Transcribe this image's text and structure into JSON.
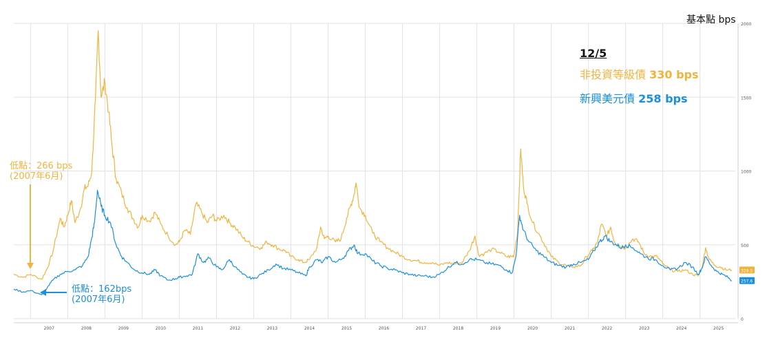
{
  "unit_label": "基本點 bps",
  "legend": {
    "date": "12/5",
    "high_yield": {
      "name": "非投資等級債",
      "value": "330 bps",
      "color": "#f2b33d"
    },
    "em_usd": {
      "name": "新興美元債",
      "value": "258 bps",
      "color": "#1a8fe0"
    }
  },
  "annotations": {
    "hy_low": {
      "line1": "低點：266 bps",
      "line2": "(2007年6月)"
    },
    "em_low": {
      "line1": "低點：162bps",
      "line2": "(2007年6月)"
    }
  },
  "end_labels": {
    "high_yield": "329.5",
    "em_usd": "257.6"
  },
  "chart_data": {
    "type": "line",
    "x_ticks": [
      "2007",
      "2008",
      "2009",
      "2010",
      "2011",
      "2012",
      "2013",
      "2014",
      "2015",
      "2016",
      "2017",
      "2018",
      "2019",
      "2020",
      "2021",
      "2022",
      "2023",
      "2024",
      "2025"
    ],
    "y_ticks": [
      0,
      500,
      1000,
      1500,
      2000
    ],
    "ylim": [
      0,
      2000
    ],
    "xlim": [
      2006.55,
      2025.95
    ],
    "grid": true,
    "series": [
      {
        "name": "非投資等級債",
        "color": "#f2b33d",
        "points": [
          [
            2006.55,
            300
          ],
          [
            2006.8,
            280
          ],
          [
            2007.0,
            300
          ],
          [
            2007.3,
            266
          ],
          [
            2007.45,
            340
          ],
          [
            2007.6,
            450
          ],
          [
            2007.8,
            680
          ],
          [
            2007.9,
            620
          ],
          [
            2008.0,
            700
          ],
          [
            2008.1,
            800
          ],
          [
            2008.2,
            650
          ],
          [
            2008.35,
            750
          ],
          [
            2008.45,
            880
          ],
          [
            2008.55,
            900
          ],
          [
            2008.65,
            1000
          ],
          [
            2008.75,
            1500
          ],
          [
            2008.82,
            1950
          ],
          [
            2008.9,
            1500
          ],
          [
            2009.0,
            1600
          ],
          [
            2009.1,
            1400
          ],
          [
            2009.2,
            1150
          ],
          [
            2009.3,
            950
          ],
          [
            2009.45,
            850
          ],
          [
            2009.6,
            750
          ],
          [
            2009.75,
            680
          ],
          [
            2009.9,
            620
          ],
          [
            2010.0,
            700
          ],
          [
            2010.2,
            660
          ],
          [
            2010.35,
            720
          ],
          [
            2010.5,
            640
          ],
          [
            2010.7,
            560
          ],
          [
            2010.9,
            500
          ],
          [
            2011.0,
            520
          ],
          [
            2011.15,
            600
          ],
          [
            2011.3,
            570
          ],
          [
            2011.45,
            780
          ],
          [
            2011.6,
            720
          ],
          [
            2011.75,
            650
          ],
          [
            2011.9,
            700
          ],
          [
            2012.0,
            660
          ],
          [
            2012.2,
            700
          ],
          [
            2012.35,
            650
          ],
          [
            2012.5,
            620
          ],
          [
            2012.7,
            550
          ],
          [
            2012.85,
            520
          ],
          [
            2013.0,
            490
          ],
          [
            2013.2,
            480
          ],
          [
            2013.35,
            520
          ],
          [
            2013.5,
            500
          ],
          [
            2013.7,
            470
          ],
          [
            2013.85,
            460
          ],
          [
            2014.0,
            420
          ],
          [
            2014.2,
            400
          ],
          [
            2014.35,
            380
          ],
          [
            2014.5,
            400
          ],
          [
            2014.7,
            480
          ],
          [
            2014.8,
            620
          ],
          [
            2014.9,
            540
          ],
          [
            2015.0,
            560
          ],
          [
            2015.2,
            520
          ],
          [
            2015.35,
            540
          ],
          [
            2015.5,
            680
          ],
          [
            2015.6,
            760
          ],
          [
            2015.7,
            840
          ],
          [
            2015.75,
            920
          ],
          [
            2015.85,
            750
          ],
          [
            2016.0,
            700
          ],
          [
            2016.2,
            580
          ],
          [
            2016.4,
            520
          ],
          [
            2016.6,
            480
          ],
          [
            2016.8,
            450
          ],
          [
            2017.0,
            420
          ],
          [
            2017.2,
            400
          ],
          [
            2017.4,
            390
          ],
          [
            2017.6,
            380
          ],
          [
            2017.8,
            380
          ],
          [
            2018.0,
            360
          ],
          [
            2018.2,
            380
          ],
          [
            2018.4,
            370
          ],
          [
            2018.6,
            380
          ],
          [
            2018.8,
            460
          ],
          [
            2018.95,
            560
          ],
          [
            2019.05,
            430
          ],
          [
            2019.2,
            440
          ],
          [
            2019.4,
            470
          ],
          [
            2019.6,
            450
          ],
          [
            2019.8,
            420
          ],
          [
            2019.95,
            420
          ],
          [
            2020.0,
            430
          ],
          [
            2020.1,
            600
          ],
          [
            2020.18,
            1150
          ],
          [
            2020.25,
            900
          ],
          [
            2020.35,
            780
          ],
          [
            2020.5,
            650
          ],
          [
            2020.7,
            560
          ],
          [
            2020.85,
            490
          ],
          [
            2021.0,
            420
          ],
          [
            2021.2,
            380
          ],
          [
            2021.4,
            360
          ],
          [
            2021.6,
            350
          ],
          [
            2021.8,
            360
          ],
          [
            2021.95,
            420
          ],
          [
            2022.1,
            460
          ],
          [
            2022.25,
            520
          ],
          [
            2022.35,
            640
          ],
          [
            2022.5,
            560
          ],
          [
            2022.6,
            620
          ],
          [
            2022.7,
            520
          ],
          [
            2022.85,
            490
          ],
          [
            2023.0,
            480
          ],
          [
            2023.2,
            540
          ],
          [
            2023.35,
            520
          ],
          [
            2023.5,
            440
          ],
          [
            2023.7,
            420
          ],
          [
            2023.85,
            420
          ],
          [
            2024.0,
            370
          ],
          [
            2024.2,
            330
          ],
          [
            2024.4,
            320
          ],
          [
            2024.6,
            330
          ],
          [
            2024.8,
            300
          ],
          [
            2024.95,
            290
          ],
          [
            2025.05,
            340
          ],
          [
            2025.15,
            480
          ],
          [
            2025.25,
            400
          ],
          [
            2025.4,
            360
          ],
          [
            2025.55,
            350
          ],
          [
            2025.7,
            330
          ],
          [
            2025.85,
            329.5
          ]
        ]
      },
      {
        "name": "新興美元債",
        "color": "#1a8fe0",
        "points": [
          [
            2006.55,
            200
          ],
          [
            2006.8,
            180
          ],
          [
            2007.0,
            190
          ],
          [
            2007.3,
            162
          ],
          [
            2007.45,
            210
          ],
          [
            2007.6,
            260
          ],
          [
            2007.8,
            300
          ],
          [
            2008.0,
            320
          ],
          [
            2008.2,
            330
          ],
          [
            2008.4,
            360
          ],
          [
            2008.55,
            420
          ],
          [
            2008.65,
            550
          ],
          [
            2008.72,
            650
          ],
          [
            2008.8,
            870
          ],
          [
            2008.9,
            760
          ],
          [
            2009.0,
            700
          ],
          [
            2009.15,
            650
          ],
          [
            2009.3,
            500
          ],
          [
            2009.45,
            420
          ],
          [
            2009.6,
            380
          ],
          [
            2009.8,
            330
          ],
          [
            2010.0,
            310
          ],
          [
            2010.2,
            300
          ],
          [
            2010.35,
            330
          ],
          [
            2010.5,
            290
          ],
          [
            2010.7,
            260
          ],
          [
            2010.9,
            270
          ],
          [
            2011.0,
            280
          ],
          [
            2011.2,
            290
          ],
          [
            2011.35,
            300
          ],
          [
            2011.5,
            440
          ],
          [
            2011.65,
            380
          ],
          [
            2011.8,
            410
          ],
          [
            2012.0,
            350
          ],
          [
            2012.15,
            330
          ],
          [
            2012.35,
            400
          ],
          [
            2012.5,
            350
          ],
          [
            2012.7,
            300
          ],
          [
            2012.85,
            280
          ],
          [
            2013.0,
            270
          ],
          [
            2013.2,
            300
          ],
          [
            2013.4,
            330
          ],
          [
            2013.6,
            370
          ],
          [
            2013.8,
            340
          ],
          [
            2014.0,
            330
          ],
          [
            2014.2,
            310
          ],
          [
            2014.4,
            290
          ],
          [
            2014.5,
            350
          ],
          [
            2014.7,
            400
          ],
          [
            2014.85,
            380
          ],
          [
            2015.0,
            420
          ],
          [
            2015.2,
            380
          ],
          [
            2015.4,
            410
          ],
          [
            2015.55,
            460
          ],
          [
            2015.7,
            500
          ],
          [
            2015.8,
            440
          ],
          [
            2016.0,
            440
          ],
          [
            2016.2,
            390
          ],
          [
            2016.4,
            360
          ],
          [
            2016.6,
            340
          ],
          [
            2016.8,
            330
          ],
          [
            2017.0,
            310
          ],
          [
            2017.2,
            300
          ],
          [
            2017.4,
            290
          ],
          [
            2017.6,
            290
          ],
          [
            2017.8,
            280
          ],
          [
            2018.0,
            300
          ],
          [
            2018.2,
            340
          ],
          [
            2018.4,
            380
          ],
          [
            2018.6,
            370
          ],
          [
            2018.8,
            400
          ],
          [
            2019.0,
            400
          ],
          [
            2019.2,
            380
          ],
          [
            2019.4,
            370
          ],
          [
            2019.6,
            360
          ],
          [
            2019.8,
            330
          ],
          [
            2019.95,
            310
          ],
          [
            2020.05,
            420
          ],
          [
            2020.15,
            700
          ],
          [
            2020.25,
            600
          ],
          [
            2020.4,
            520
          ],
          [
            2020.6,
            460
          ],
          [
            2020.8,
            420
          ],
          [
            2021.0,
            380
          ],
          [
            2021.2,
            360
          ],
          [
            2021.4,
            350
          ],
          [
            2021.6,
            370
          ],
          [
            2021.8,
            380
          ],
          [
            2022.0,
            400
          ],
          [
            2022.15,
            460
          ],
          [
            2022.3,
            520
          ],
          [
            2022.45,
            560
          ],
          [
            2022.6,
            520
          ],
          [
            2022.75,
            500
          ],
          [
            2022.9,
            480
          ],
          [
            2023.0,
            500
          ],
          [
            2023.2,
            480
          ],
          [
            2023.4,
            440
          ],
          [
            2023.6,
            410
          ],
          [
            2023.8,
            400
          ],
          [
            2024.0,
            360
          ],
          [
            2024.2,
            330
          ],
          [
            2024.4,
            340
          ],
          [
            2024.6,
            380
          ],
          [
            2024.8,
            350
          ],
          [
            2024.95,
            300
          ],
          [
            2025.05,
            340
          ],
          [
            2025.15,
            420
          ],
          [
            2025.3,
            360
          ],
          [
            2025.45,
            320
          ],
          [
            2025.6,
            300
          ],
          [
            2025.75,
            280
          ],
          [
            2025.85,
            257.6
          ]
        ]
      }
    ]
  }
}
